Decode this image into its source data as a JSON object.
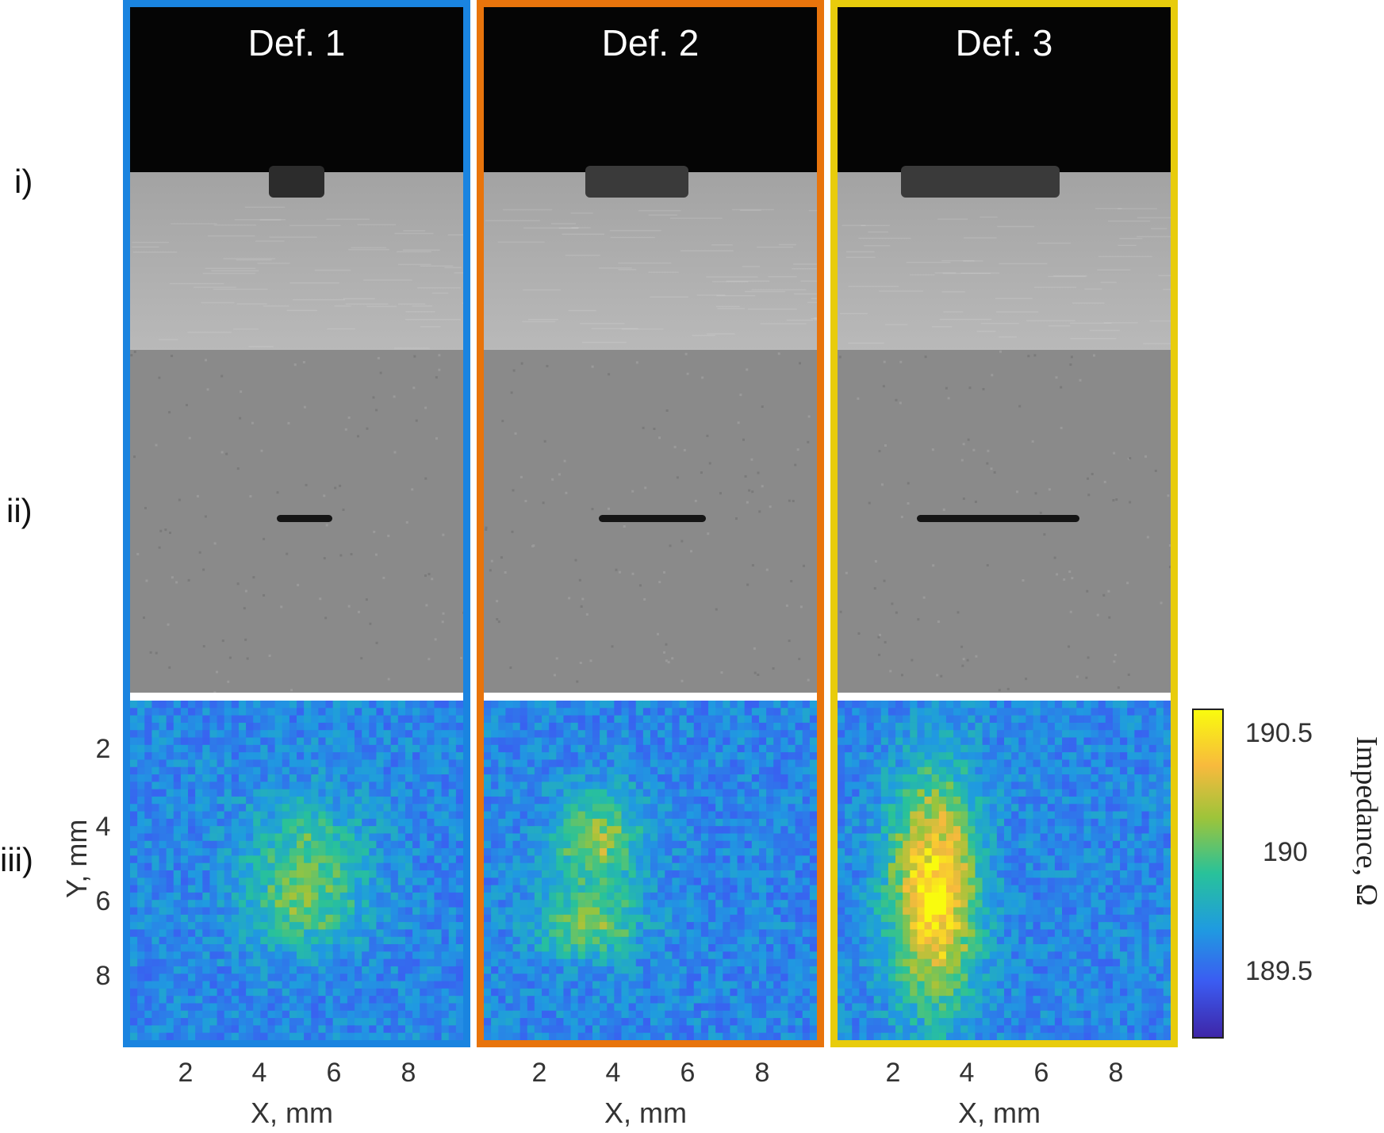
{
  "rows": {
    "row_i": "i)",
    "row_ii": "ii)",
    "row_iii": "iii)"
  },
  "panels": [
    {
      "title": "Def. 1",
      "border_color": "#1a84e0"
    },
    {
      "title": "Def. 2",
      "border_color": "#e8740c"
    },
    {
      "title": "Def. 3",
      "border_color": "#e8cc0c"
    }
  ],
  "x_axis": {
    "label": "X, mm",
    "ticks": [
      "2",
      "4",
      "6",
      "8"
    ]
  },
  "y_axis": {
    "label": "Y, mm",
    "ticks": [
      "2",
      "4",
      "6",
      "8"
    ]
  },
  "colorbar": {
    "label": "Impedance, Ω",
    "ticks": [
      "190.5",
      "190",
      "189.5"
    ],
    "colors": [
      "#3e26a8",
      "#3b5cf2",
      "#1f9be0",
      "#28c29a",
      "#9dc43a",
      "#f8ba3d",
      "#f9fb0e"
    ]
  }
}
